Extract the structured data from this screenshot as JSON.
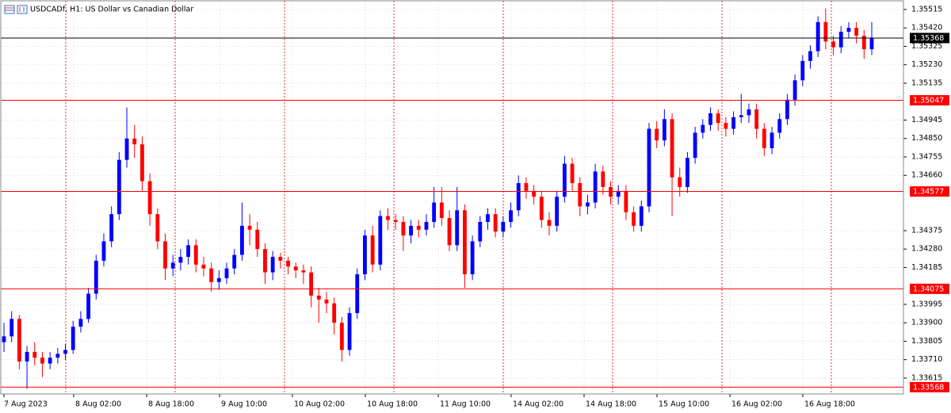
{
  "chart_data": {
    "type": "candlestick",
    "title": "USDCADf, H1:  US Dollar vs Canadian Dollar",
    "open": [
      1.338,
      1.3383,
      1.3392,
      1.337,
      1.3375,
      1.3372,
      1.3369,
      1.3372,
      1.3374,
      1.3376,
      1.3388,
      1.3392,
      1.3405,
      1.3422,
      1.3432,
      1.3446,
      1.3474,
      1.3485,
      1.3482,
      1.3463,
      1.3446,
      1.3432,
      1.3418,
      1.3421,
      1.3424,
      1.343,
      1.342,
      1.3418,
      1.3411,
      1.3413,
      1.3418,
      1.3425,
      1.344,
      1.3438,
      1.3428,
      1.3416,
      1.3424,
      1.3422,
      1.3419,
      1.3417,
      1.3416,
      1.3404,
      1.3402,
      1.34,
      1.339,
      1.3376,
      1.3395,
      1.3415,
      1.3435,
      1.342,
      1.3445,
      1.3443,
      1.3442,
      1.3435,
      1.344,
      1.3438,
      1.3442,
      1.3452,
      1.3444,
      1.343,
      1.3448,
      1.3415,
      1.3432,
      1.3442,
      1.3446,
      1.3437,
      1.3442,
      1.3448,
      1.3462,
      1.3458,
      1.3455,
      1.3443,
      1.344,
      1.3455,
      1.3472,
      1.3462,
      1.345,
      1.3452,
      1.3468,
      1.346,
      1.3455,
      1.3458,
      1.3447,
      1.344,
      1.345,
      1.349,
      1.3484,
      1.3495,
      1.3465,
      1.346,
      1.3475,
      1.3488,
      1.3492,
      1.3498,
      1.3493,
      1.349,
      1.3496,
      1.3497,
      1.35,
      1.349,
      1.348,
      1.3488,
      1.3495,
      1.3505,
      1.3515,
      1.3525,
      1.353,
      1.3545,
      1.3535,
      1.3532,
      1.354,
      1.3542,
      1.3538,
      1.3531
    ],
    "high": [
      1.339,
      1.3396,
      1.3394,
      1.3378,
      1.338,
      1.3375,
      1.3375,
      1.3377,
      1.3379,
      1.3391,
      1.3396,
      1.3408,
      1.3425,
      1.3436,
      1.345,
      1.3478,
      1.3501,
      1.3492,
      1.3486,
      1.3467,
      1.3449,
      1.3436,
      1.3425,
      1.3428,
      1.3433,
      1.3433,
      1.3424,
      1.3421,
      1.3417,
      1.3421,
      1.3428,
      1.3452,
      1.3446,
      1.3442,
      1.3431,
      1.3427,
      1.3426,
      1.3424,
      1.3421,
      1.342,
      1.3419,
      1.3408,
      1.3406,
      1.3403,
      1.3393,
      1.3398,
      1.3418,
      1.3438,
      1.344,
      1.3448,
      1.3449,
      1.3446,
      1.3445,
      1.3443,
      1.3443,
      1.3446,
      1.346,
      1.346,
      1.3448,
      1.346,
      1.3451,
      1.3435,
      1.3445,
      1.3449,
      1.3449,
      1.3445,
      1.3452,
      1.3466,
      1.3465,
      1.3461,
      1.3458,
      1.3447,
      1.3458,
      1.3476,
      1.3475,
      1.3465,
      1.3456,
      1.3472,
      1.3471,
      1.3463,
      1.3461,
      1.3461,
      1.345,
      1.3453,
      1.3493,
      1.3494,
      1.35,
      1.3498,
      1.347,
      1.3478,
      1.3491,
      1.3495,
      1.3501,
      1.35,
      1.3496,
      1.3499,
      1.3508,
      1.3503,
      1.3503,
      1.3493,
      1.3491,
      1.3498,
      1.3508,
      1.3518,
      1.3528,
      1.3533,
      1.3548,
      1.3552,
      1.3538,
      1.3543,
      1.3545,
      1.3545,
      1.3541,
      1.3545
    ],
    "low": [
      1.3375,
      1.338,
      1.3366,
      1.3356,
      1.3368,
      1.3362,
      1.3366,
      1.3369,
      1.3371,
      1.3374,
      1.3385,
      1.339,
      1.3402,
      1.3419,
      1.3429,
      1.3443,
      1.347,
      1.3475,
      1.3458,
      1.344,
      1.3428,
      1.3412,
      1.3414,
      1.3417,
      1.342,
      1.3416,
      1.3414,
      1.3406,
      1.3407,
      1.341,
      1.3415,
      1.3422,
      1.343,
      1.3424,
      1.341,
      1.3412,
      1.3418,
      1.3415,
      1.3413,
      1.341,
      1.3398,
      1.339,
      1.3395,
      1.3384,
      1.337,
      1.3373,
      1.3392,
      1.3412,
      1.3416,
      1.3417,
      1.3438,
      1.3438,
      1.3427,
      1.3431,
      1.3434,
      1.3435,
      1.3439,
      1.344,
      1.3427,
      1.3427,
      1.3408,
      1.3412,
      1.3429,
      1.3438,
      1.3434,
      1.3434,
      1.3439,
      1.3445,
      1.3454,
      1.3451,
      1.3439,
      1.3435,
      1.3437,
      1.3452,
      1.3458,
      1.3445,
      1.3446,
      1.3449,
      1.3456,
      1.3451,
      1.3451,
      1.3443,
      1.3437,
      1.3437,
      1.3447,
      1.348,
      1.3481,
      1.3445,
      1.3455,
      1.3457,
      1.3472,
      1.3485,
      1.3489,
      1.3489,
      1.3486,
      1.3487,
      1.3493,
      1.3493,
      1.3485,
      1.3476,
      1.3477,
      1.3485,
      1.3492,
      1.3502,
      1.3512,
      1.3521,
      1.3527,
      1.3531,
      1.3528,
      1.3529,
      1.3537,
      1.3534,
      1.3526,
      1.3528
    ],
    "close": [
      1.3383,
      1.3392,
      1.337,
      1.3375,
      1.3372,
      1.3369,
      1.3372,
      1.3374,
      1.3376,
      1.3388,
      1.3392,
      1.3405,
      1.3422,
      1.3432,
      1.3446,
      1.3474,
      1.3485,
      1.3482,
      1.3463,
      1.3446,
      1.3432,
      1.3418,
      1.3421,
      1.3424,
      1.343,
      1.342,
      1.3418,
      1.3411,
      1.3413,
      1.3418,
      1.3425,
      1.344,
      1.3438,
      1.3428,
      1.3416,
      1.3424,
      1.3422,
      1.3419,
      1.3417,
      1.3416,
      1.3404,
      1.3402,
      1.34,
      1.339,
      1.3376,
      1.3395,
      1.3415,
      1.3435,
      1.342,
      1.3445,
      1.3443,
      1.3442,
      1.3435,
      1.344,
      1.3438,
      1.3442,
      1.3452,
      1.3444,
      1.343,
      1.3448,
      1.3415,
      1.3432,
      1.3442,
      1.3446,
      1.3437,
      1.3442,
      1.3448,
      1.3462,
      1.3458,
      1.3455,
      1.3443,
      1.344,
      1.3455,
      1.3472,
      1.3462,
      1.345,
      1.3452,
      1.3468,
      1.346,
      1.3455,
      1.3458,
      1.3447,
      1.344,
      1.345,
      1.349,
      1.3484,
      1.3495,
      1.3465,
      1.346,
      1.3475,
      1.3488,
      1.3492,
      1.3498,
      1.3493,
      1.349,
      1.3496,
      1.3497,
      1.35,
      1.349,
      1.348,
      1.3488,
      1.3495,
      1.3505,
      1.3515,
      1.3525,
      1.353,
      1.3545,
      1.3535,
      1.3532,
      1.354,
      1.3542,
      1.3538,
      1.3531,
      1.3537
    ],
    "up_color": "#0000ff",
    "down_color": "#ff0000",
    "ylim": [
      1.33533,
      1.35564
    ],
    "yticks": [
      1.35515,
      {
        "value": 1.3542,
        "label": "1.35420"
      },
      1.35325,
      {
        "value": 1.3523,
        "label": "1.35230"
      },
      1.35135,
      1.34945,
      {
        "value": 1.3485,
        "label": "1.34850"
      },
      1.34755,
      {
        "value": 1.3466,
        "label": "1.34660"
      },
      1.34375,
      {
        "value": 1.3428,
        "label": "1.34280"
      },
      1.34185,
      1.33995,
      {
        "value": 1.339,
        "label": "1.33900"
      },
      1.33805,
      {
        "value": 1.3371,
        "label": "1.33710"
      },
      1.33615
    ],
    "grid": true,
    "levels": [
      1.35368,
      1.35047,
      1.34577,
      1.34075,
      1.33568
    ],
    "level_colors": [
      "#000000",
      "#ff0000",
      "#ff0000",
      "#ff0000",
      "#ff0000"
    ],
    "xlabels": [
      "7 Aug 2023",
      "8 Aug 02:00",
      "8 Aug 18:00",
      "9 Aug 10:00",
      "10 Aug 02:00",
      "10 Aug 18:00",
      "11 Aug 10:00",
      "14 Aug 02:00",
      "14 Aug 18:00",
      "15 Aug 10:00",
      "16 Aug 02:00",
      "16 Aug 18:00"
    ]
  }
}
